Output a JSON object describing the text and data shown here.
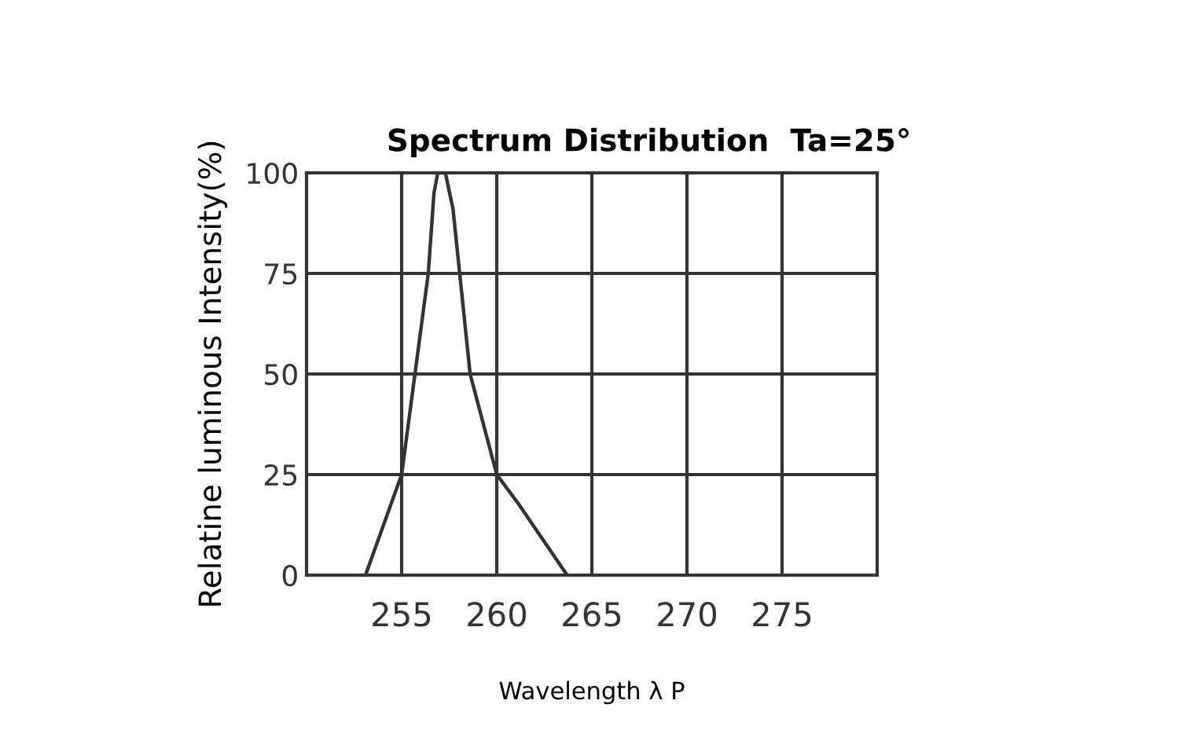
{
  "chart_data": {
    "type": "line",
    "title": "Spectrum Distribution  Ta=25°",
    "xlabel": "Wavelength λ P",
    "ylabel": "Relatine luminous Intensity(%)",
    "x": [
      253.1,
      255,
      256.4,
      256.7,
      256.9,
      257.3,
      257.7,
      258.6,
      260,
      261.1,
      263.7
    ],
    "series": [
      {
        "color": "#333333",
        "values": [
          0,
          25,
          75,
          95,
          100,
          100,
          91,
          50,
          25,
          18,
          0
        ]
      }
    ],
    "xlim": [
      250,
      280
    ],
    "xticks": [
      255,
      260,
      265,
      270,
      275
    ],
    "ylim": [
      0,
      100
    ],
    "yticks": [
      0,
      25,
      50,
      75,
      100
    ],
    "grid": true,
    "legend": false,
    "marker": "none",
    "line_style": "solid"
  }
}
